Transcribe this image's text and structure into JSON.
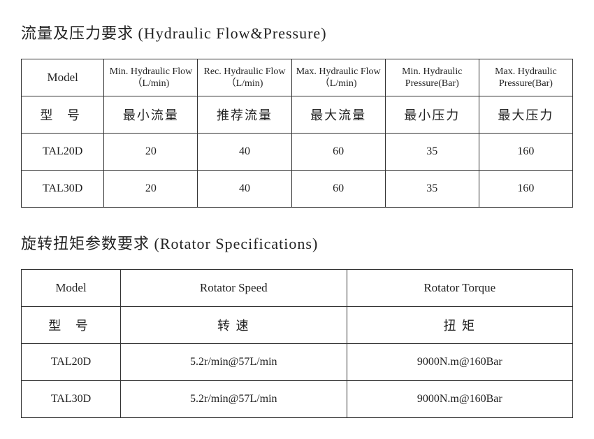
{
  "section1": {
    "title_cn": "流量及压力要求",
    "title_en": "(Hydraulic Flow&Pressure)",
    "headers_en": [
      "Model",
      "Min. Hydraulic Flow（L/min)",
      "Rec. Hydraulic Flow（L/min)",
      "Max. Hydraulic Flow（L/min)",
      "Min. Hydraulic Pressure(Bar)",
      "Max. Hydraulic Pressure(Bar)"
    ],
    "headers_cn": [
      "型 号",
      "最小流量",
      "推荐流量",
      "最大流量",
      "最小压力",
      "最大压力"
    ],
    "rows": [
      [
        "TAL20D",
        "20",
        "40",
        "60",
        "35",
        "160"
      ],
      [
        "TAL30D",
        "20",
        "40",
        "60",
        "35",
        "160"
      ]
    ]
  },
  "section2": {
    "title_cn": "旋转扭矩参数要求",
    "title_en": "(Rotator Specifications)",
    "headers_en": [
      "Model",
      "Rotator Speed",
      "Rotator Torque"
    ],
    "headers_cn": [
      "型 号",
      "转 速",
      "扭 矩"
    ],
    "rows": [
      [
        "TAL20D",
        "5.2r/min@57L/min",
        "9000N.m@160Bar"
      ],
      [
        "TAL30D",
        "5.2r/min@57L/min",
        "9000N.m@160Bar"
      ]
    ]
  }
}
